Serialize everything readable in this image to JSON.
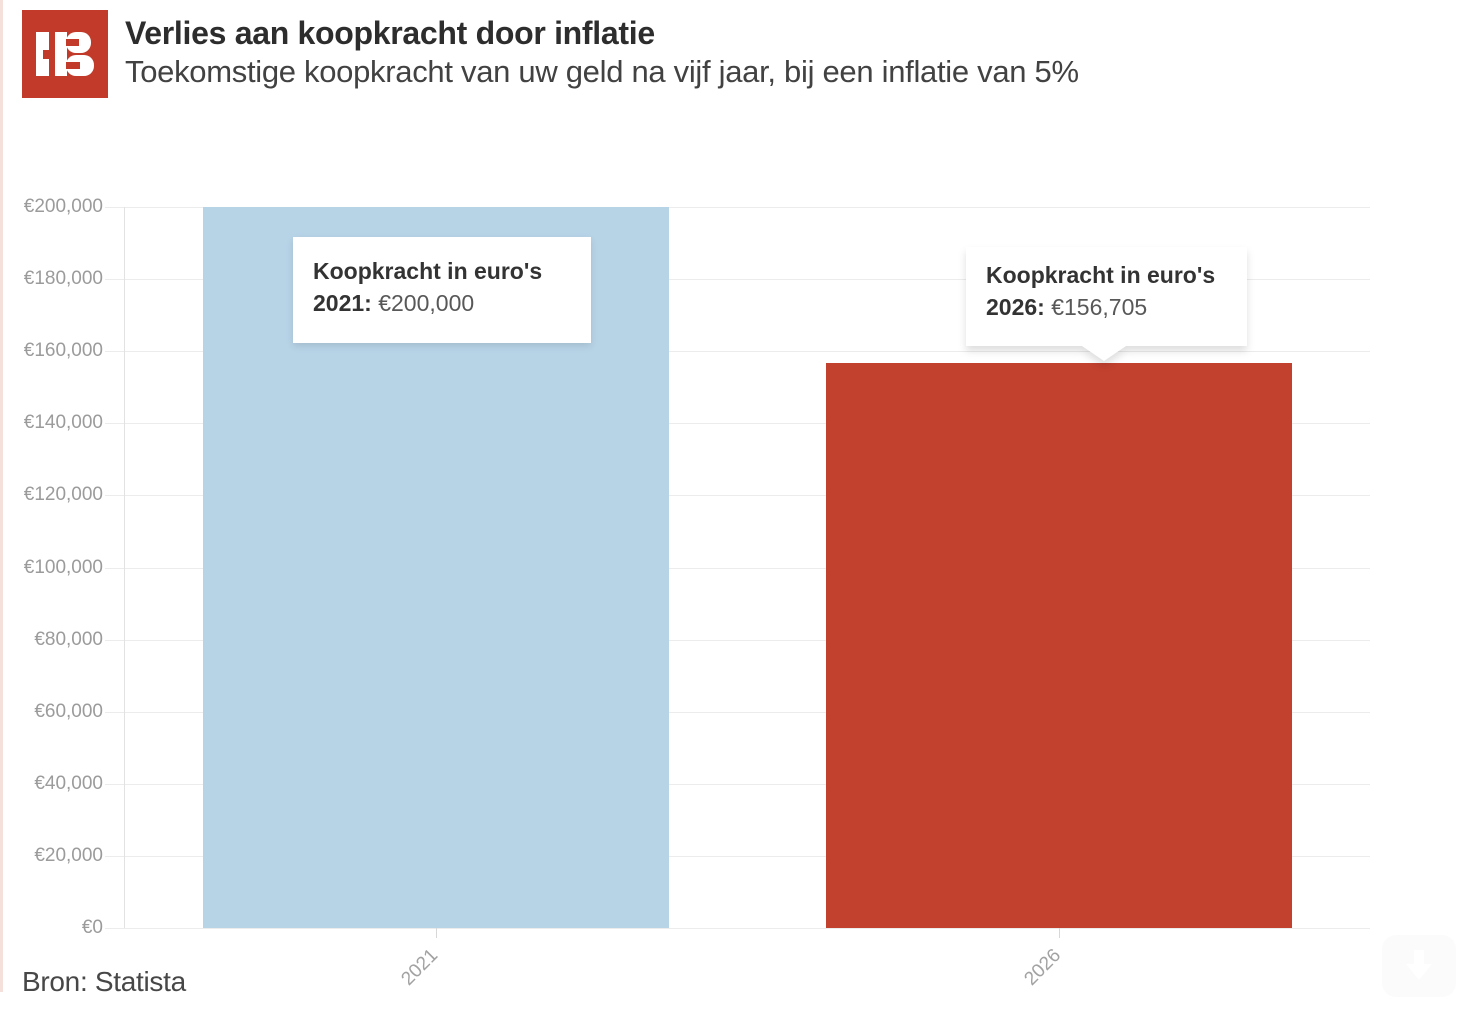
{
  "header": {
    "logo_name": "business-am-logo",
    "logo_color": "#c23a29",
    "title": "Verlies aan koopkracht door inflatie",
    "subtitle": "Toekomstige koopkracht van uw geld na vijf jaar, bij een inflatie van 5%"
  },
  "chart_data": {
    "type": "bar",
    "categories": [
      "2021",
      "2026"
    ],
    "values": [
      200000,
      156705
    ],
    "bar_colors": [
      "#b7d3e6",
      "#c2402e"
    ],
    "title": "Verlies aan koopkracht door inflatie",
    "subtitle": "Toekomstige koopkracht van uw geld na vijf jaar, bij een inflatie van 5%",
    "xlabel": "",
    "ylabel": "",
    "ylim": [
      0,
      200000
    ],
    "ytick_step": 20000,
    "yticks": [
      {
        "value": 0,
        "label": "€0"
      },
      {
        "value": 20000,
        "label": "€20,000"
      },
      {
        "value": 40000,
        "label": "€40,000"
      },
      {
        "value": 60000,
        "label": "€60,000"
      },
      {
        "value": 80000,
        "label": "€80,000"
      },
      {
        "value": 100000,
        "label": "€100,000"
      },
      {
        "value": 120000,
        "label": "€120,000"
      },
      {
        "value": 140000,
        "label": "€140,000"
      },
      {
        "value": 160000,
        "label": "€160,000"
      },
      {
        "value": 180000,
        "label": "€180,000"
      },
      {
        "value": 200000,
        "label": "€200,000"
      }
    ],
    "grid": true,
    "legend": "none",
    "tooltips": [
      {
        "title": "Koopkracht in euro's",
        "year_label": "2021:",
        "value": "€200,000"
      },
      {
        "title": "Koopkracht in euro's",
        "year_label": "2026:",
        "value": "€156,705"
      }
    ]
  },
  "footer": {
    "source": "Bron: Statista"
  },
  "icons": {
    "download": "download-arrow-icon"
  }
}
